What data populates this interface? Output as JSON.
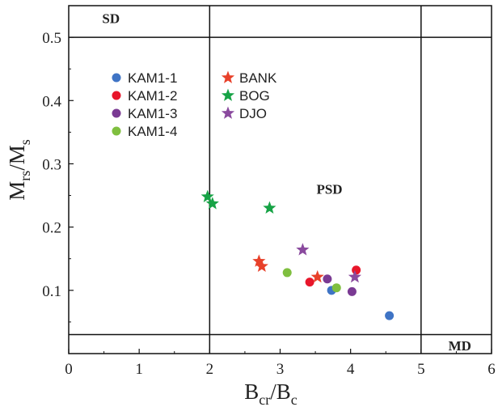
{
  "chart_data": {
    "type": "scatter",
    "xlabel": {
      "main": "B",
      "sub_1": "cr",
      "sep": "/B",
      "sub_2": "c"
    },
    "ylabel": {
      "main": "M",
      "sub_1": "rs",
      "sep": "/M",
      "sub_2": "s"
    },
    "xlim": [
      0,
      6
    ],
    "ylim": [
      0,
      0.55
    ],
    "xticks": [
      0,
      1,
      2,
      3,
      4,
      5,
      6
    ],
    "yticks": [
      0.1,
      0.2,
      0.3,
      0.4,
      0.5
    ],
    "xtick_labels": [
      "0",
      "1",
      "2",
      "3",
      "4",
      "5",
      "6"
    ],
    "ytick_labels": [
      "0.1",
      "0.2",
      "0.3",
      "0.4",
      "0.5"
    ],
    "reference_lines": {
      "vertical": [
        2,
        5
      ],
      "horizontal": [
        0.5,
        0.03
      ]
    },
    "regions": [
      {
        "label": "SD",
        "x": 0.6,
        "y": 0.53
      },
      {
        "label": "PSD",
        "x": 3.7,
        "y": 0.26
      },
      {
        "label": "MD",
        "x": 5.55,
        "y": 0.013
      }
    ],
    "legend_position": "top-left",
    "series": [
      {
        "name": "KAM1-1",
        "marker": "circle",
        "color": "#3f74c5",
        "points": [
          {
            "x": 3.73,
            "y": 0.1
          },
          {
            "x": 4.55,
            "y": 0.06
          }
        ]
      },
      {
        "name": "KAM1-2",
        "marker": "circle",
        "color": "#e8162b",
        "points": [
          {
            "x": 3.42,
            "y": 0.113
          },
          {
            "x": 4.08,
            "y": 0.132
          }
        ]
      },
      {
        "name": "KAM1-3",
        "marker": "circle",
        "color": "#7a3a93",
        "points": [
          {
            "x": 3.67,
            "y": 0.118
          },
          {
            "x": 4.02,
            "y": 0.098
          }
        ]
      },
      {
        "name": "KAM1-4",
        "marker": "circle",
        "color": "#7fbf3f",
        "points": [
          {
            "x": 3.1,
            "y": 0.128
          },
          {
            "x": 3.8,
            "y": 0.104
          }
        ]
      },
      {
        "name": "BANK",
        "marker": "star",
        "color": "#e8412a",
        "points": [
          {
            "x": 2.7,
            "y": 0.146
          },
          {
            "x": 2.74,
            "y": 0.138
          },
          {
            "x": 3.53,
            "y": 0.121
          }
        ]
      },
      {
        "name": "BOG",
        "marker": "star",
        "color": "#17a346",
        "points": [
          {
            "x": 1.97,
            "y": 0.248
          },
          {
            "x": 2.04,
            "y": 0.237
          },
          {
            "x": 2.85,
            "y": 0.23
          }
        ]
      },
      {
        "name": "DJO",
        "marker": "star",
        "color": "#8a4a9e",
        "points": [
          {
            "x": 3.32,
            "y": 0.164
          },
          {
            "x": 4.06,
            "y": 0.121
          }
        ]
      }
    ]
  }
}
